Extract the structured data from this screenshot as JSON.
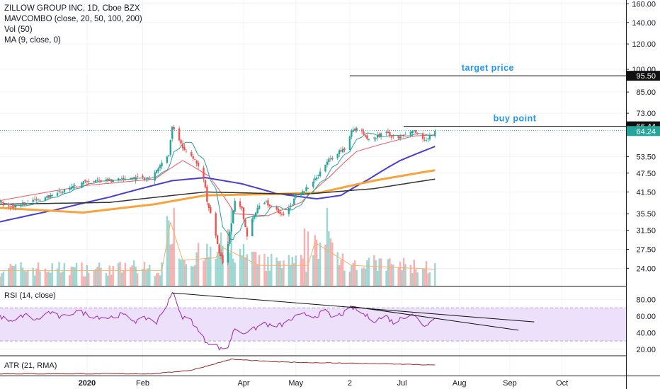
{
  "header": {
    "title": "ZILLOW GROUP INC, 1D, Cboe BZX",
    "indicators": [
      "MAVCOMBO (close, 20, 50, 100, 200)",
      "Vol (50)",
      "MA (9, close, 0)"
    ]
  },
  "colors": {
    "up": "#26a69a",
    "down": "#ef5350",
    "ma20": "#f0575f",
    "ma50": "#4a3ed1",
    "ma100": "#f7a43a",
    "ma200": "#333333",
    "ma9": "#2b9e9a",
    "rsi": "#9c27b0",
    "rsi_band": "#ece0fb",
    "atr": "#9e2a2a",
    "annotation": "#2196f3",
    "tag_dark": "#111111",
    "tag_green": "#26a69a"
  },
  "chart_data": [
    {
      "type": "candlestick",
      "name": "price",
      "yscale": "log",
      "ylim": [
        21.5,
        162
      ],
      "y_ticks": [
        24.0,
        27.5,
        31.5,
        35.5,
        41.5,
        47.5,
        53.5,
        64.24,
        66.44,
        73.0,
        85.0,
        95.5,
        100.0,
        120.0,
        140.0,
        160.0
      ],
      "y_tick_labels": [
        "24.00",
        "27.50",
        "31.50",
        "35.50",
        "41.50",
        "47.50",
        "53.50",
        "64.24",
        "66.44",
        "73.00",
        "85.00",
        "95.50",
        "100.00",
        "120.00",
        "140.00",
        "160.00"
      ],
      "x_labels": [
        "2020",
        "Feb",
        "Apr",
        "May",
        "2",
        "Jul",
        "Aug",
        "Sep",
        "Oct"
      ],
      "x_label_dates": [
        "2020-01-02",
        "2020-02-03",
        "2020-04-01",
        "2020-05-01",
        "2020-06-01",
        "2020-07-01",
        "2020-08-03",
        "2020-09-01",
        "2020-10-01"
      ],
      "ohlc_anchors": [
        {
          "date": "2019-11-13",
          "close": 38.5
        },
        {
          "date": "2019-11-20",
          "close": 36.8
        },
        {
          "date": "2019-11-27",
          "close": 38.2
        },
        {
          "date": "2019-12-05",
          "close": 39.3
        },
        {
          "date": "2019-12-13",
          "close": 40.4
        },
        {
          "date": "2019-12-20",
          "close": 42.1
        },
        {
          "date": "2019-12-31",
          "close": 44.3
        },
        {
          "date": "2020-01-09",
          "close": 45.2
        },
        {
          "date": "2020-01-17",
          "close": 44.8
        },
        {
          "date": "2020-01-24",
          "close": 45.9
        },
        {
          "date": "2020-01-31",
          "close": 46.1
        },
        {
          "date": "2020-02-07",
          "close": 45.5
        },
        {
          "date": "2020-02-13",
          "close": 50.5
        },
        {
          "date": "2020-02-18",
          "close": 54.0
        },
        {
          "date": "2020-02-20",
          "close": 66.5
        },
        {
          "date": "2020-02-24",
          "close": 59.5
        },
        {
          "date": "2020-02-27",
          "close": 55.5
        },
        {
          "date": "2020-03-02",
          "close": 53.5
        },
        {
          "date": "2020-03-05",
          "close": 51.5
        },
        {
          "date": "2020-03-09",
          "close": 46.0
        },
        {
          "date": "2020-03-11",
          "close": 39.0
        },
        {
          "date": "2020-03-13",
          "close": 35.5
        },
        {
          "date": "2020-03-16",
          "close": 30.5
        },
        {
          "date": "2020-03-18",
          "close": 27.0
        },
        {
          "date": "2020-03-20",
          "close": 25.0
        },
        {
          "date": "2020-03-23",
          "close": 28.5
        },
        {
          "date": "2020-03-25",
          "close": 33.5
        },
        {
          "date": "2020-03-27",
          "close": 38.5
        },
        {
          "date": "2020-03-31",
          "close": 36.5
        },
        {
          "date": "2020-04-03",
          "close": 30.5
        },
        {
          "date": "2020-04-07",
          "close": 35.0
        },
        {
          "date": "2020-04-09",
          "close": 37.0
        },
        {
          "date": "2020-04-14",
          "close": 38.5
        },
        {
          "date": "2020-04-17",
          "close": 37.5
        },
        {
          "date": "2020-04-21",
          "close": 36.0
        },
        {
          "date": "2020-04-24",
          "close": 35.0
        },
        {
          "date": "2020-04-28",
          "close": 37.5
        },
        {
          "date": "2020-05-01",
          "close": 40.0
        },
        {
          "date": "2020-05-05",
          "close": 41.5
        },
        {
          "date": "2020-05-08",
          "close": 43.0
        },
        {
          "date": "2020-05-12",
          "close": 45.5
        },
        {
          "date": "2020-05-15",
          "close": 47.5
        },
        {
          "date": "2020-05-20",
          "close": 52.5
        },
        {
          "date": "2020-05-26",
          "close": 55.5
        },
        {
          "date": "2020-05-29",
          "close": 56.0
        },
        {
          "date": "2020-06-02",
          "close": 64.5
        },
        {
          "date": "2020-06-05",
          "close": 65.5
        },
        {
          "date": "2020-06-09",
          "close": 63.0
        },
        {
          "date": "2020-06-12",
          "close": 60.5
        },
        {
          "date": "2020-06-17",
          "close": 62.0
        },
        {
          "date": "2020-06-22",
          "close": 63.5
        },
        {
          "date": "2020-06-25",
          "close": 61.0
        },
        {
          "date": "2020-06-30",
          "close": 61.5
        },
        {
          "date": "2020-07-02",
          "close": 63.0
        },
        {
          "date": "2020-07-07",
          "close": 65.0
        },
        {
          "date": "2020-07-10",
          "close": 63.5
        },
        {
          "date": "2020-07-14",
          "close": 60.0
        },
        {
          "date": "2020-07-17",
          "close": 62.0
        },
        {
          "date": "2020-07-20",
          "close": 64.24
        }
      ],
      "moving_averages": [
        {
          "name": "MA 20",
          "points": [
            {
              "date": "2019-11-13",
              "value": 39.0
            },
            {
              "date": "2020-01-02",
              "value": 43.5
            },
            {
              "date": "2020-02-10",
              "value": 45.5
            },
            {
              "date": "2020-02-26",
              "value": 52.0
            },
            {
              "date": "2020-03-12",
              "value": 46.5
            },
            {
              "date": "2020-03-27",
              "value": 35.5
            },
            {
              "date": "2020-04-15",
              "value": 35.0
            },
            {
              "date": "2020-05-04",
              "value": 38.5
            },
            {
              "date": "2020-05-20",
              "value": 46.0
            },
            {
              "date": "2020-06-05",
              "value": 55.5
            },
            {
              "date": "2020-06-22",
              "value": 59.0
            },
            {
              "date": "2020-07-08",
              "value": 62.0
            },
            {
              "date": "2020-07-20",
              "value": 62.5
            }
          ]
        },
        {
          "name": "MA 50",
          "points": [
            {
              "date": "2019-11-13",
              "value": 33.5
            },
            {
              "date": "2019-12-15",
              "value": 36.5
            },
            {
              "date": "2020-01-15",
              "value": 40.0
            },
            {
              "date": "2020-02-20",
              "value": 45.0
            },
            {
              "date": "2020-03-10",
              "value": 46.0
            },
            {
              "date": "2020-03-31",
              "value": 44.0
            },
            {
              "date": "2020-04-20",
              "value": 41.0
            },
            {
              "date": "2020-05-13",
              "value": 39.5
            },
            {
              "date": "2020-05-27",
              "value": 40.5
            },
            {
              "date": "2020-06-12",
              "value": 45.5
            },
            {
              "date": "2020-06-30",
              "value": 52.0
            },
            {
              "date": "2020-07-20",
              "value": 57.5
            }
          ]
        },
        {
          "name": "MA 100",
          "points": [
            {
              "date": "2019-11-13",
              "value": 37.0
            },
            {
              "date": "2019-12-31",
              "value": 35.8
            },
            {
              "date": "2020-02-10",
              "value": 38.0
            },
            {
              "date": "2020-03-10",
              "value": 40.5
            },
            {
              "date": "2020-04-20",
              "value": 40.9
            },
            {
              "date": "2020-05-15",
              "value": 41.3
            },
            {
              "date": "2020-06-15",
              "value": 45.0
            },
            {
              "date": "2020-07-20",
              "value": 48.5
            }
          ]
        },
        {
          "name": "MA 200",
          "points": [
            {
              "date": "2019-11-13",
              "value": 38.0
            },
            {
              "date": "2020-01-15",
              "value": 38.5
            },
            {
              "date": "2020-03-10",
              "value": 41.5
            },
            {
              "date": "2020-05-05",
              "value": 40.8
            },
            {
              "date": "2020-06-15",
              "value": 42.5
            },
            {
              "date": "2020-07-20",
              "value": 45.5
            }
          ]
        }
      ],
      "annotations": [
        {
          "label": "target price",
          "level": 95.5,
          "from": "2020-06-01",
          "to_axis": true
        },
        {
          "label": "buy point",
          "level": 66.44,
          "from": "2020-07-02",
          "to_axis": true
        }
      ],
      "dotted_line": {
        "level": 66.44
      },
      "last_price": 64.24
    },
    {
      "type": "bar",
      "name": "Vol (50)",
      "volume_profile": [
        {
          "date": "2019-11-13",
          "value": 1.2
        },
        {
          "date": "2020-02-14",
          "value": 1.2
        },
        {
          "date": "2020-02-19",
          "value": 5.0
        },
        {
          "date": "2020-02-26",
          "value": 2.0
        },
        {
          "date": "2020-03-16",
          "value": 2.2
        },
        {
          "date": "2020-03-20",
          "value": 3.0
        },
        {
          "date": "2020-04-10",
          "value": 1.6
        },
        {
          "date": "2020-05-08",
          "value": 1.6
        },
        {
          "date": "2020-05-12",
          "value": 3.4
        },
        {
          "date": "2020-06-02",
          "value": 1.6
        },
        {
          "date": "2020-07-20",
          "value": 1.3
        }
      ]
    },
    {
      "type": "line",
      "name": "RSI (14, close)",
      "ylim": [
        13,
        95
      ],
      "y_ticks": [
        20.0,
        40.0,
        60.0,
        80.0
      ],
      "y_tick_labels": [
        "20.00",
        "40.00",
        "60.00",
        "80.00"
      ],
      "band": [
        30,
        70
      ],
      "points": [
        {
          "date": "2019-11-13",
          "value": 60
        },
        {
          "date": "2019-11-20",
          "value": 52
        },
        {
          "date": "2019-11-27",
          "value": 62
        },
        {
          "date": "2019-12-04",
          "value": 55
        },
        {
          "date": "2019-12-11",
          "value": 65
        },
        {
          "date": "2019-12-18",
          "value": 58
        },
        {
          "date": "2019-12-27",
          "value": 66
        },
        {
          "date": "2020-01-06",
          "value": 60
        },
        {
          "date": "2020-01-14",
          "value": 58
        },
        {
          "date": "2020-01-22",
          "value": 62
        },
        {
          "date": "2020-01-30",
          "value": 54
        },
        {
          "date": "2020-02-06",
          "value": 58
        },
        {
          "date": "2020-02-11",
          "value": 52
        },
        {
          "date": "2020-02-17",
          "value": 75
        },
        {
          "date": "2020-02-20",
          "value": 90
        },
        {
          "date": "2020-02-25",
          "value": 60
        },
        {
          "date": "2020-03-02",
          "value": 55
        },
        {
          "date": "2020-03-06",
          "value": 42
        },
        {
          "date": "2020-03-10",
          "value": 30
        },
        {
          "date": "2020-03-16",
          "value": 25
        },
        {
          "date": "2020-03-19",
          "value": 20
        },
        {
          "date": "2020-03-23",
          "value": 23
        },
        {
          "date": "2020-03-27",
          "value": 46
        },
        {
          "date": "2020-03-31",
          "value": 40
        },
        {
          "date": "2020-04-06",
          "value": 43
        },
        {
          "date": "2020-04-13",
          "value": 52
        },
        {
          "date": "2020-04-17",
          "value": 47
        },
        {
          "date": "2020-04-24",
          "value": 50
        },
        {
          "date": "2020-04-30",
          "value": 58
        },
        {
          "date": "2020-05-06",
          "value": 62
        },
        {
          "date": "2020-05-12",
          "value": 60
        },
        {
          "date": "2020-05-18",
          "value": 66
        },
        {
          "date": "2020-05-22",
          "value": 58
        },
        {
          "date": "2020-05-29",
          "value": 64
        },
        {
          "date": "2020-06-03",
          "value": 70
        },
        {
          "date": "2020-06-09",
          "value": 62
        },
        {
          "date": "2020-06-15",
          "value": 55
        },
        {
          "date": "2020-06-22",
          "value": 60
        },
        {
          "date": "2020-06-26",
          "value": 52
        },
        {
          "date": "2020-07-01",
          "value": 58
        },
        {
          "date": "2020-07-07",
          "value": 64
        },
        {
          "date": "2020-07-13",
          "value": 48
        },
        {
          "date": "2020-07-17",
          "value": 52
        },
        {
          "date": "2020-07-20",
          "value": 60
        }
      ],
      "trendlines": [
        {
          "from": {
            "date": "2020-02-20",
            "value": 88
          },
          "to": {
            "date": "2020-09-15",
            "value": 53
          }
        },
        {
          "from": {
            "date": "2020-06-01",
            "value": 72
          },
          "to": {
            "date": "2020-09-06",
            "value": 43
          }
        }
      ]
    },
    {
      "type": "line",
      "name": "ATR (21, RMA)",
      "ylim": [
        2.0,
        6.2
      ],
      "points": [
        {
          "date": "2019-11-13",
          "value": 2.4
        },
        {
          "date": "2020-02-10",
          "value": 2.4
        },
        {
          "date": "2020-03-02",
          "value": 3.2
        },
        {
          "date": "2020-03-25",
          "value": 5.6
        },
        {
          "date": "2020-04-20",
          "value": 5.0
        },
        {
          "date": "2020-05-20",
          "value": 4.8
        },
        {
          "date": "2020-06-20",
          "value": 4.6
        },
        {
          "date": "2020-07-20",
          "value": 4.3
        }
      ]
    }
  ]
}
